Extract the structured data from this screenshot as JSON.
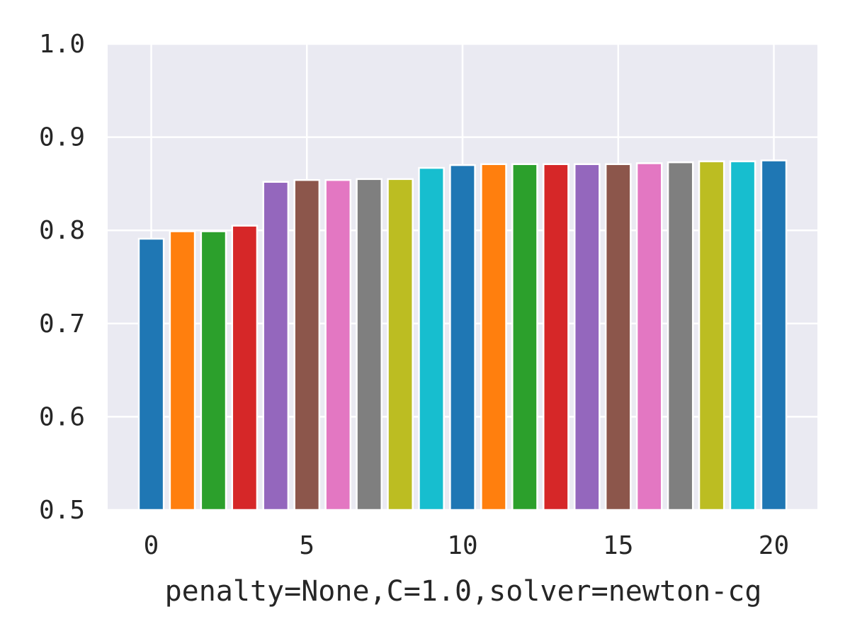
{
  "chart_data": {
    "type": "bar",
    "title": "",
    "xlabel": "penalty=None,C=1.0,solver=newton-cg",
    "ylabel": "",
    "x": [
      0,
      1,
      2,
      3,
      4,
      5,
      6,
      7,
      8,
      9,
      10,
      11,
      12,
      13,
      14,
      15,
      16,
      17,
      18,
      19,
      20
    ],
    "values": [
      0.791,
      0.799,
      0.799,
      0.805,
      0.852,
      0.854,
      0.854,
      0.855,
      0.855,
      0.867,
      0.87,
      0.871,
      0.871,
      0.871,
      0.871,
      0.871,
      0.872,
      0.873,
      0.874,
      0.874,
      0.875
    ],
    "ylim": [
      0.5,
      1.0
    ],
    "xlim": [
      -1.4,
      21.4
    ],
    "xticks": [
      0,
      5,
      10,
      15,
      20
    ],
    "yticks": [
      0.5,
      0.6,
      0.7,
      0.8,
      0.9,
      1.0
    ],
    "xtick_labels": [
      "0",
      "5",
      "10",
      "15",
      "20"
    ],
    "ytick_labels": [
      "0.5",
      "0.6",
      "0.7",
      "0.8",
      "0.9",
      "1.0"
    ],
    "grid": true,
    "background": "#eaeaf2",
    "grid_color": "#ffffff",
    "bar_colors": [
      "#1f77b4",
      "#ff7f0e",
      "#2ca02c",
      "#d62728",
      "#9467bd",
      "#8c564b",
      "#e377c2",
      "#7f7f7f",
      "#bcbd22",
      "#17becf"
    ]
  }
}
